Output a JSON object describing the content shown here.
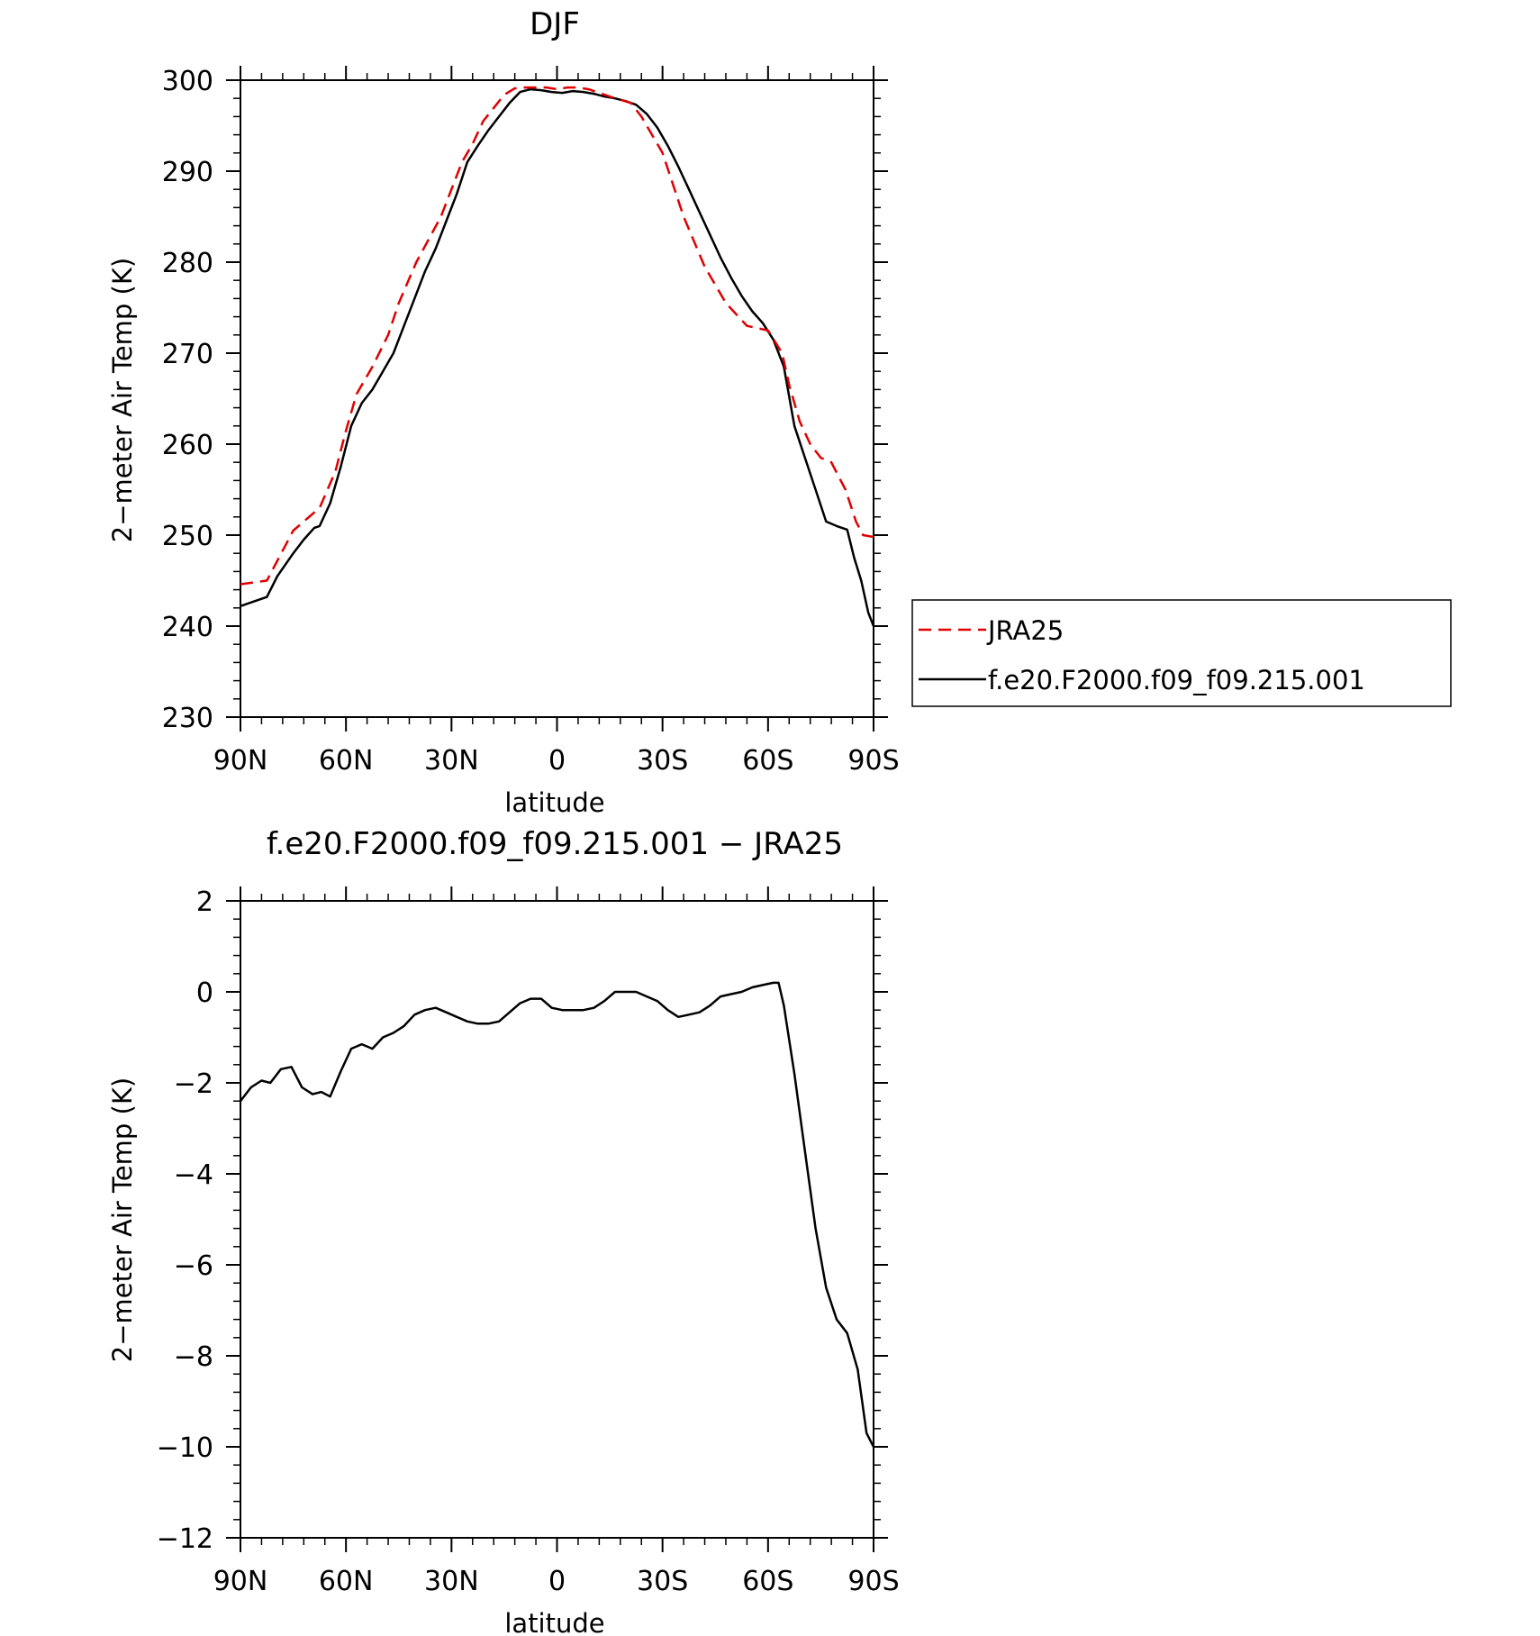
{
  "chart_data": [
    {
      "type": "line",
      "title": "DJF",
      "xlabel": "latitude",
      "ylabel": "2−meter Air Temp (K)",
      "xlim": [
        90,
        -90
      ],
      "ylim": [
        230,
        300
      ],
      "x_ticks": [
        {
          "value": 90,
          "label": "90N"
        },
        {
          "value": 60,
          "label": "60N"
        },
        {
          "value": 30,
          "label": "30N"
        },
        {
          "value": 0,
          "label": "0"
        },
        {
          "value": -30,
          "label": "30S"
        },
        {
          "value": -60,
          "label": "60S"
        },
        {
          "value": -90,
          "label": "90S"
        }
      ],
      "y_ticks": [
        {
          "value": 300,
          "label": "300"
        },
        {
          "value": 290,
          "label": "290"
        },
        {
          "value": 280,
          "label": "280"
        },
        {
          "value": 270,
          "label": "270"
        },
        {
          "value": 260,
          "label": "260"
        },
        {
          "value": 250,
          "label": "250"
        },
        {
          "value": 240,
          "label": "240"
        },
        {
          "value": 230,
          "label": "230"
        }
      ],
      "legend": "outside-right",
      "series": [
        {
          "name": "JRA25",
          "color": "#e00000",
          "dash": true,
          "x": [
            90,
            82.5,
            75,
            67.5,
            63,
            60,
            57,
            52.5,
            48,
            45,
            40,
            33,
            27,
            24,
            21,
            15,
            12,
            9,
            6,
            3,
            0,
            -3,
            -6,
            -9,
            -15,
            -21,
            -24,
            -30,
            -36,
            -42,
            -48,
            -54,
            -60,
            -64,
            -66,
            -69,
            -72,
            -75,
            -78,
            -82,
            -85,
            -87,
            -90
          ],
          "y": [
            244.6,
            245.0,
            250.5,
            253.0,
            257.0,
            261.5,
            265.5,
            268.5,
            272.0,
            275.5,
            280.0,
            285.0,
            291.0,
            293.0,
            295.5,
            298.4,
            299.1,
            299.2,
            299.2,
            299.2,
            299.0,
            299.2,
            299.2,
            299.0,
            298.2,
            297.5,
            296.0,
            292.0,
            285.0,
            279.5,
            275.5,
            273.0,
            272.5,
            270.0,
            266.5,
            262.5,
            260.0,
            258.5,
            258.0,
            255.0,
            251.5,
            250.0,
            249.8
          ]
        },
        {
          "name": "f.e20.F2000.f09_f09.215.001",
          "color": "#000000",
          "dash": false,
          "x": [
            90,
            85.5,
            82.5,
            79.5,
            75,
            72,
            69,
            67.5,
            64.5,
            61.5,
            58.5,
            55.5,
            52.5,
            49.5,
            46.5,
            43.5,
            40.5,
            37.5,
            34.5,
            31.5,
            28.5,
            25.5,
            22.5,
            19.5,
            16.5,
            13.5,
            10.5,
            7.5,
            4.5,
            1.5,
            -1.5,
            -4.5,
            -7.5,
            -10.5,
            -13.5,
            -16.5,
            -19.5,
            -22.5,
            -25.5,
            -28.5,
            -31.5,
            -34.5,
            -37.5,
            -40.5,
            -43.5,
            -46.5,
            -49.5,
            -52.5,
            -55.5,
            -58.5,
            -61.5,
            -64.5,
            -67.5,
            -70.5,
            -73.5,
            -76.5,
            -79.5,
            -82.5,
            -84.5,
            -86.5,
            -88.5,
            -90
          ],
          "y": [
            242.2,
            242.8,
            243.2,
            245.5,
            248.0,
            249.5,
            250.8,
            251.0,
            253.5,
            257.5,
            262.0,
            264.5,
            266.0,
            268.0,
            270.0,
            273.0,
            276.0,
            279.0,
            281.5,
            284.5,
            287.5,
            291.0,
            292.8,
            294.5,
            296.0,
            297.5,
            298.7,
            299.0,
            298.9,
            298.7,
            298.6,
            298.8,
            298.7,
            298.5,
            298.2,
            298.0,
            297.7,
            297.3,
            296.3,
            294.8,
            292.8,
            290.5,
            288.0,
            285.5,
            283.0,
            280.5,
            278.3,
            276.3,
            274.6,
            273.3,
            271.5,
            268.5,
            262.0,
            258.5,
            255.0,
            251.5,
            251.0,
            250.6,
            247.5,
            245.0,
            241.5,
            240.0
          ]
        }
      ]
    },
    {
      "type": "line",
      "title": "f.e20.F2000.f09_f09.215.001 − JRA25",
      "xlabel": "latitude",
      "ylabel": "2−meter Air Temp (K)",
      "xlim": [
        90,
        -90
      ],
      "ylim": [
        -12,
        2
      ],
      "x_ticks": [
        {
          "value": 90,
          "label": "90N"
        },
        {
          "value": 60,
          "label": "60N"
        },
        {
          "value": 30,
          "label": "30N"
        },
        {
          "value": 0,
          "label": "0"
        },
        {
          "value": -30,
          "label": "30S"
        },
        {
          "value": -60,
          "label": "60S"
        },
        {
          "value": -90,
          "label": "90S"
        }
      ],
      "y_ticks": [
        {
          "value": 2,
          "label": "2"
        },
        {
          "value": 0,
          "label": "0"
        },
        {
          "value": -2,
          "label": "−2"
        },
        {
          "value": -4,
          "label": "−4"
        },
        {
          "value": -6,
          "label": "−6"
        },
        {
          "value": -8,
          "label": "−8"
        },
        {
          "value": -10,
          "label": "−10"
        },
        {
          "value": -12,
          "label": "−12"
        }
      ],
      "series": [
        {
          "color": "#000000",
          "dash": false,
          "x": [
            90,
            87,
            84,
            81.5,
            78.5,
            75.5,
            72.5,
            69.5,
            67,
            64.5,
            61.5,
            58.5,
            55.5,
            52.5,
            49.5,
            46.5,
            43.5,
            40.5,
            37.5,
            34.5,
            31.5,
            28.5,
            25.5,
            22.5,
            19.5,
            16.5,
            13.5,
            10.5,
            7.5,
            4.5,
            1.5,
            -1.5,
            -4.5,
            -7.5,
            -10.5,
            -13.5,
            -16.5,
            -19.5,
            -22.5,
            -25.5,
            -28.5,
            -31.5,
            -34.5,
            -37.5,
            -40.5,
            -43.5,
            -46.5,
            -49.5,
            -52.5,
            -55.5,
            -58.5,
            -61.5,
            -63,
            -64.5,
            -67.5,
            -70.5,
            -73.5,
            -76.5,
            -79.5,
            -82.5,
            -85.5,
            -88,
            -90
          ],
          "y": [
            -2.4,
            -2.1,
            -1.95,
            -2.0,
            -1.7,
            -1.65,
            -2.1,
            -2.25,
            -2.2,
            -2.3,
            -1.75,
            -1.25,
            -1.15,
            -1.25,
            -1.0,
            -0.9,
            -0.75,
            -0.5,
            -0.4,
            -0.35,
            -0.45,
            -0.55,
            -0.65,
            -0.7,
            -0.7,
            -0.65,
            -0.45,
            -0.25,
            -0.15,
            -0.15,
            -0.35,
            -0.4,
            -0.4,
            -0.4,
            -0.35,
            -0.2,
            0.0,
            0.0,
            0.0,
            -0.1,
            -0.2,
            -0.4,
            -0.55,
            -0.5,
            -0.45,
            -0.3,
            -0.1,
            -0.05,
            0.0,
            0.1,
            0.15,
            0.2,
            0.2,
            -0.3,
            -1.8,
            -3.5,
            -5.2,
            -6.5,
            -7.2,
            -7.5,
            -8.3,
            -9.7,
            -10.0
          ]
        }
      ]
    }
  ]
}
